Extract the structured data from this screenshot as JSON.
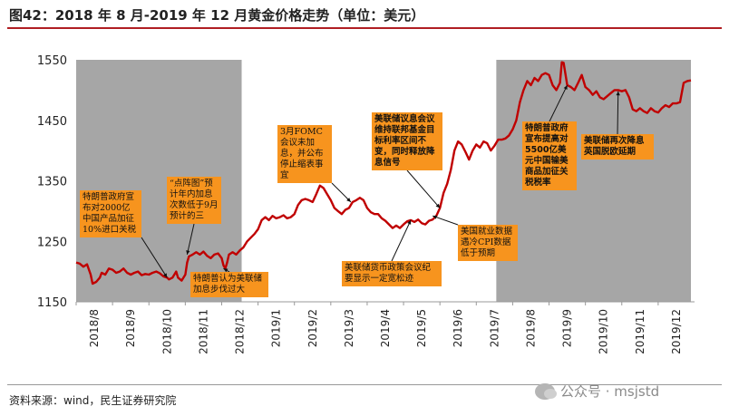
{
  "title": "图42：2018 年 8 月-2019 年 12 月黄金价格走势（单位：美元）",
  "source": "资料来源：wind，民生证券研究院",
  "watermark": "公众号 · msjstd",
  "colors": {
    "line": "#c00000",
    "shade": "#a6a6a6",
    "annotation": "#f7941e",
    "title_rule": "#b01e23"
  },
  "chart_data": {
    "type": "line",
    "title": "",
    "xlabel": "",
    "ylabel": "",
    "ylim": [
      1150,
      1550
    ],
    "yticks": [
      1150,
      1250,
      1350,
      1450,
      1550
    ],
    "categories": [
      "2018/8",
      "2018/9",
      "2018/10",
      "2018/11",
      "2018/12",
      "2019/1",
      "2019/2",
      "2019/3",
      "2019/4",
      "2019/5",
      "2019/6",
      "2019/7",
      "2019/8",
      "2019/9",
      "2019/10",
      "2019/11",
      "2019/12"
    ],
    "grid": false,
    "shaded_periods": [
      {
        "from": 0,
        "to": 4.55
      },
      {
        "from": 11.55,
        "to": 16.9
      }
    ],
    "series": [
      {
        "values_by_month_fraction": [
          [
            0.0,
            1215
          ],
          [
            0.1,
            1213
          ],
          [
            0.2,
            1208
          ],
          [
            0.3,
            1212
          ],
          [
            0.4,
            1195
          ],
          [
            0.45,
            1180
          ],
          [
            0.55,
            1183
          ],
          [
            0.65,
            1190
          ],
          [
            0.7,
            1198
          ],
          [
            0.8,
            1195
          ],
          [
            0.9,
            1205
          ],
          [
            1.0,
            1203
          ],
          [
            1.1,
            1198
          ],
          [
            1.2,
            1200
          ],
          [
            1.3,
            1205
          ],
          [
            1.4,
            1198
          ],
          [
            1.5,
            1195
          ],
          [
            1.6,
            1198
          ],
          [
            1.7,
            1200
          ],
          [
            1.8,
            1194
          ],
          [
            1.9,
            1196
          ],
          [
            2.0,
            1195
          ],
          [
            2.1,
            1198
          ],
          [
            2.2,
            1200
          ],
          [
            2.3,
            1197
          ],
          [
            2.4,
            1192
          ],
          [
            2.5,
            1190
          ],
          [
            2.55,
            1187
          ],
          [
            2.65,
            1190
          ],
          [
            2.75,
            1200
          ],
          [
            2.8,
            1190
          ],
          [
            2.9,
            1185
          ],
          [
            3.0,
            1195
          ],
          [
            3.05,
            1215
          ],
          [
            3.1,
            1225
          ],
          [
            3.2,
            1228
          ],
          [
            3.3,
            1232
          ],
          [
            3.4,
            1228
          ],
          [
            3.5,
            1233
          ],
          [
            3.6,
            1226
          ],
          [
            3.7,
            1222
          ],
          [
            3.8,
            1228
          ],
          [
            3.9,
            1230
          ],
          [
            4.0,
            1222
          ],
          [
            4.05,
            1210
          ],
          [
            4.1,
            1205
          ],
          [
            4.15,
            1215
          ],
          [
            4.2,
            1228
          ],
          [
            4.3,
            1232
          ],
          [
            4.4,
            1228
          ],
          [
            4.5,
            1235
          ],
          [
            4.6,
            1240
          ],
          [
            4.7,
            1250
          ],
          [
            4.8,
            1256
          ],
          [
            4.9,
            1262
          ],
          [
            5.0,
            1270
          ],
          [
            5.1,
            1285
          ],
          [
            5.2,
            1290
          ],
          [
            5.3,
            1285
          ],
          [
            5.4,
            1292
          ],
          [
            5.5,
            1288
          ],
          [
            5.6,
            1290
          ],
          [
            5.7,
            1293
          ],
          [
            5.8,
            1288
          ],
          [
            5.9,
            1290
          ],
          [
            6.0,
            1295
          ],
          [
            6.1,
            1310
          ],
          [
            6.2,
            1318
          ],
          [
            6.3,
            1320
          ],
          [
            6.4,
            1318
          ],
          [
            6.5,
            1315
          ],
          [
            6.6,
            1328
          ],
          [
            6.7,
            1342
          ],
          [
            6.8,
            1338
          ],
          [
            6.9,
            1328
          ],
          [
            7.0,
            1318
          ],
          [
            7.1,
            1305
          ],
          [
            7.2,
            1300
          ],
          [
            7.3,
            1295
          ],
          [
            7.4,
            1302
          ],
          [
            7.5,
            1305
          ],
          [
            7.6,
            1315
          ],
          [
            7.7,
            1318
          ],
          [
            7.8,
            1322
          ],
          [
            7.9,
            1318
          ],
          [
            8.0,
            1305
          ],
          [
            8.1,
            1298
          ],
          [
            8.2,
            1295
          ],
          [
            8.3,
            1295
          ],
          [
            8.4,
            1288
          ],
          [
            8.5,
            1284
          ],
          [
            8.6,
            1278
          ],
          [
            8.7,
            1272
          ],
          [
            8.8,
            1276
          ],
          [
            8.9,
            1272
          ],
          [
            9.0,
            1278
          ],
          [
            9.1,
            1283
          ],
          [
            9.2,
            1285
          ],
          [
            9.3,
            1282
          ],
          [
            9.4,
            1286
          ],
          [
            9.5,
            1280
          ],
          [
            9.6,
            1278
          ],
          [
            9.7,
            1284
          ],
          [
            9.8,
            1286
          ],
          [
            9.9,
            1292
          ],
          [
            10.0,
            1305
          ],
          [
            10.1,
            1330
          ],
          [
            10.2,
            1345
          ],
          [
            10.3,
            1368
          ],
          [
            10.4,
            1400
          ],
          [
            10.5,
            1415
          ],
          [
            10.6,
            1410
          ],
          [
            10.7,
            1398
          ],
          [
            10.8,
            1385
          ],
          [
            10.9,
            1400
          ],
          [
            11.0,
            1410
          ],
          [
            11.1,
            1405
          ],
          [
            11.2,
            1415
          ],
          [
            11.3,
            1412
          ],
          [
            11.4,
            1400
          ],
          [
            11.5,
            1408
          ],
          [
            11.6,
            1418
          ],
          [
            11.7,
            1418
          ],
          [
            11.8,
            1420
          ],
          [
            11.9,
            1425
          ],
          [
            12.0,
            1435
          ],
          [
            12.1,
            1450
          ],
          [
            12.2,
            1480
          ],
          [
            12.3,
            1500
          ],
          [
            12.4,
            1515
          ],
          [
            12.5,
            1508
          ],
          [
            12.6,
            1520
          ],
          [
            12.7,
            1515
          ],
          [
            12.8,
            1525
          ],
          [
            12.9,
            1528
          ],
          [
            13.0,
            1525
          ],
          [
            13.1,
            1508
          ],
          [
            13.2,
            1500
          ],
          [
            13.3,
            1512
          ],
          [
            13.35,
            1546
          ],
          [
            13.4,
            1545
          ],
          [
            13.5,
            1508
          ],
          [
            13.6,
            1505
          ],
          [
            13.7,
            1500
          ],
          [
            13.8,
            1512
          ],
          [
            13.9,
            1525
          ],
          [
            14.0,
            1505
          ],
          [
            14.1,
            1500
          ],
          [
            14.2,
            1492
          ],
          [
            14.3,
            1498
          ],
          [
            14.4,
            1488
          ],
          [
            14.5,
            1485
          ],
          [
            14.6,
            1490
          ],
          [
            14.7,
            1495
          ],
          [
            14.8,
            1500
          ],
          [
            14.9,
            1500
          ],
          [
            15.0,
            1498
          ],
          [
            15.1,
            1500
          ],
          [
            15.2,
            1488
          ],
          [
            15.3,
            1468
          ],
          [
            15.4,
            1465
          ],
          [
            15.5,
            1470
          ],
          [
            15.6,
            1465
          ],
          [
            15.7,
            1462
          ],
          [
            15.8,
            1470
          ],
          [
            15.9,
            1465
          ],
          [
            16.0,
            1463
          ],
          [
            16.1,
            1470
          ],
          [
            16.2,
            1475
          ],
          [
            16.3,
            1472
          ],
          [
            16.4,
            1478
          ],
          [
            16.5,
            1478
          ],
          [
            16.6,
            1480
          ],
          [
            16.7,
            1512
          ],
          [
            16.8,
            1515
          ],
          [
            16.9,
            1516
          ]
        ]
      }
    ],
    "annotations": [
      {
        "text": "特朗普政府宣布对2000亿中国产品加征10%进口关税",
        "anchor_month": 2.5,
        "anchor_value": 1190,
        "bold": false,
        "key": "a1"
      },
      {
        "text": "“点阵图”预计年内加息次数低于9月预计的三",
        "anchor_month": 3.05,
        "anchor_value": 1228,
        "bold": false,
        "key": "a2"
      },
      {
        "text": "特朗普认为美联储加息步伐过大",
        "anchor_month": 4.05,
        "anchor_value": 1205,
        "bold": false,
        "key": "a3"
      },
      {
        "text": "3月FOMC会议未加息，并公布停止缩表事宜",
        "anchor_month": 7.55,
        "anchor_value": 1315,
        "bold": false,
        "key": "a4"
      },
      {
        "text": "美联储货币政策会议纪要显示一定宽松迹",
        "anchor_month": 9.2,
        "anchor_value": 1285,
        "bold": false,
        "key": "a5"
      },
      {
        "text": "美联储议息会议维持联邦基金目标利率区间不变，同时释放降息信号",
        "anchor_month": 10.0,
        "anchor_value": 1305,
        "bold": true,
        "key": "a6"
      },
      {
        "text": "美国就业数据遇冷CPI数据低于预期",
        "anchor_month": 9.8,
        "anchor_value": 1292,
        "bold": false,
        "key": "a7"
      },
      {
        "text": "特朗普政府宣布提高对5500亿美元中国输美商品加征关税税率",
        "anchor_month": 13.5,
        "anchor_value": 1508,
        "bold": true,
        "key": "a8"
      },
      {
        "text": "美联储再次降息英国脱欧延期",
        "anchor_month": 14.9,
        "anchor_value": 1498,
        "bold": true,
        "key": "a9"
      }
    ]
  }
}
